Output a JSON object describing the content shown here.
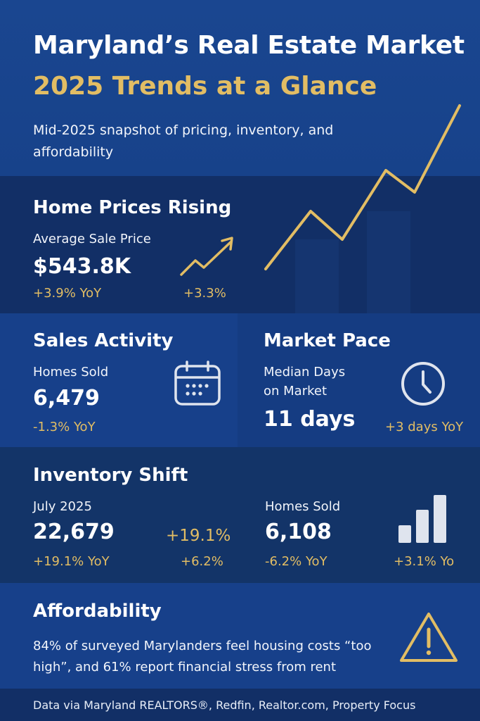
{
  "header": {
    "title": "Maryland’s Real Estate Market",
    "subtitle": "2025 Trends at a Glance",
    "tagline": "Mid-2025 snapshot of pricing, inventory, and affordability"
  },
  "prices": {
    "heading": "Home Prices Rising",
    "label": "Average Sale Price",
    "value": "$543.8K",
    "yoy": "+3.9% YoY",
    "trend_value": "+3.3%",
    "trend_icon": "trend-up-arrow-icon"
  },
  "sales": {
    "heading": "Sales Activity",
    "label": "Homes Sold",
    "value": "6,479",
    "yoy": "-1.3% YoY",
    "icon": "calendar-icon"
  },
  "pace": {
    "heading": "Market Pace",
    "label_line1": "Median Days",
    "label_line2": "on Market",
    "value": "11 days",
    "yoy": "+3 days YoY",
    "icon": "clock-icon"
  },
  "inventory": {
    "heading": "Inventory Shift",
    "left": {
      "label": "July 2025",
      "value": "22,679",
      "yoy": "+19.1% YoY",
      "change_pct": "+19.1%",
      "change_small": "+6.2%"
    },
    "right": {
      "label": "Homes Sold",
      "value": "6,108",
      "yoy": "-6.2% YoY",
      "change": "+3.1% Yo",
      "icon": "bar-chart-icon"
    }
  },
  "affordability": {
    "heading": "Affordability",
    "text": "84% of surveyed Marylanders feel housing costs “too high”, and 61% report financial stress from rent",
    "icon": "warning-triangle-icon"
  },
  "footer": {
    "source": "Data via Maryland REALTORS®, Redfin, Realtor.com, Property Focus"
  },
  "colors": {
    "accent_gold": "#e2bd64",
    "navy": "#143a7a",
    "icon_light": "#dfe4ee"
  }
}
